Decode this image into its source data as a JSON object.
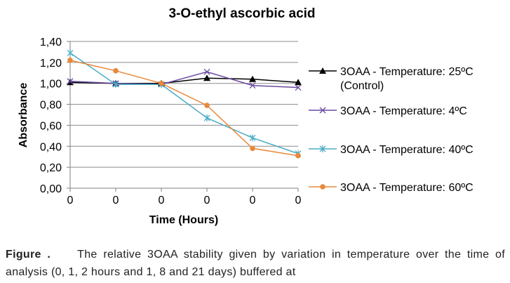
{
  "chart_data": {
    "type": "line",
    "title": "3-O-ethyl ascorbic acid",
    "xlabel": "Time (Hours)",
    "ylabel": "Absorbance",
    "categories": [
      "0",
      "0",
      "0",
      "0",
      "0",
      "0"
    ],
    "ylim": [
      0,
      1.4
    ],
    "yticks": [
      "0,00",
      "0,20",
      "0,40",
      "0,60",
      "0,80",
      "1,00",
      "1,20",
      "1,40"
    ],
    "grid": true,
    "legend_position": "right",
    "series": [
      {
        "name": "3OAA - Temperature: 25ºC",
        "name_line2": "(Control)",
        "values": [
          1.01,
          1.0,
          1.0,
          1.05,
          1.04,
          1.01
        ],
        "color": "#000000",
        "marker": "triangle"
      },
      {
        "name": "3OAA - Temperature: 4ºC",
        "values": [
          1.02,
          1.0,
          0.99,
          1.11,
          0.98,
          0.96
        ],
        "color": "#6a4a9e",
        "marker": "x"
      },
      {
        "name": "3OAA - Temperature: 40ºC",
        "values": [
          1.29,
          0.99,
          0.99,
          0.67,
          0.48,
          0.33
        ],
        "color": "#4bacc6",
        "marker": "star"
      },
      {
        "name": "3OAA - Temperature: 60ºC",
        "values": [
          1.22,
          1.12,
          1.0,
          0.79,
          0.38,
          0.31
        ],
        "color": "#e8883a",
        "marker": "circle"
      }
    ]
  },
  "caption": {
    "label": "Figure .",
    "text": "The relative 3OAA stability given by variation in temperature over the time of analysis (0, 1, 2 hours and 1, 8 and 21 days) buffered at"
  }
}
